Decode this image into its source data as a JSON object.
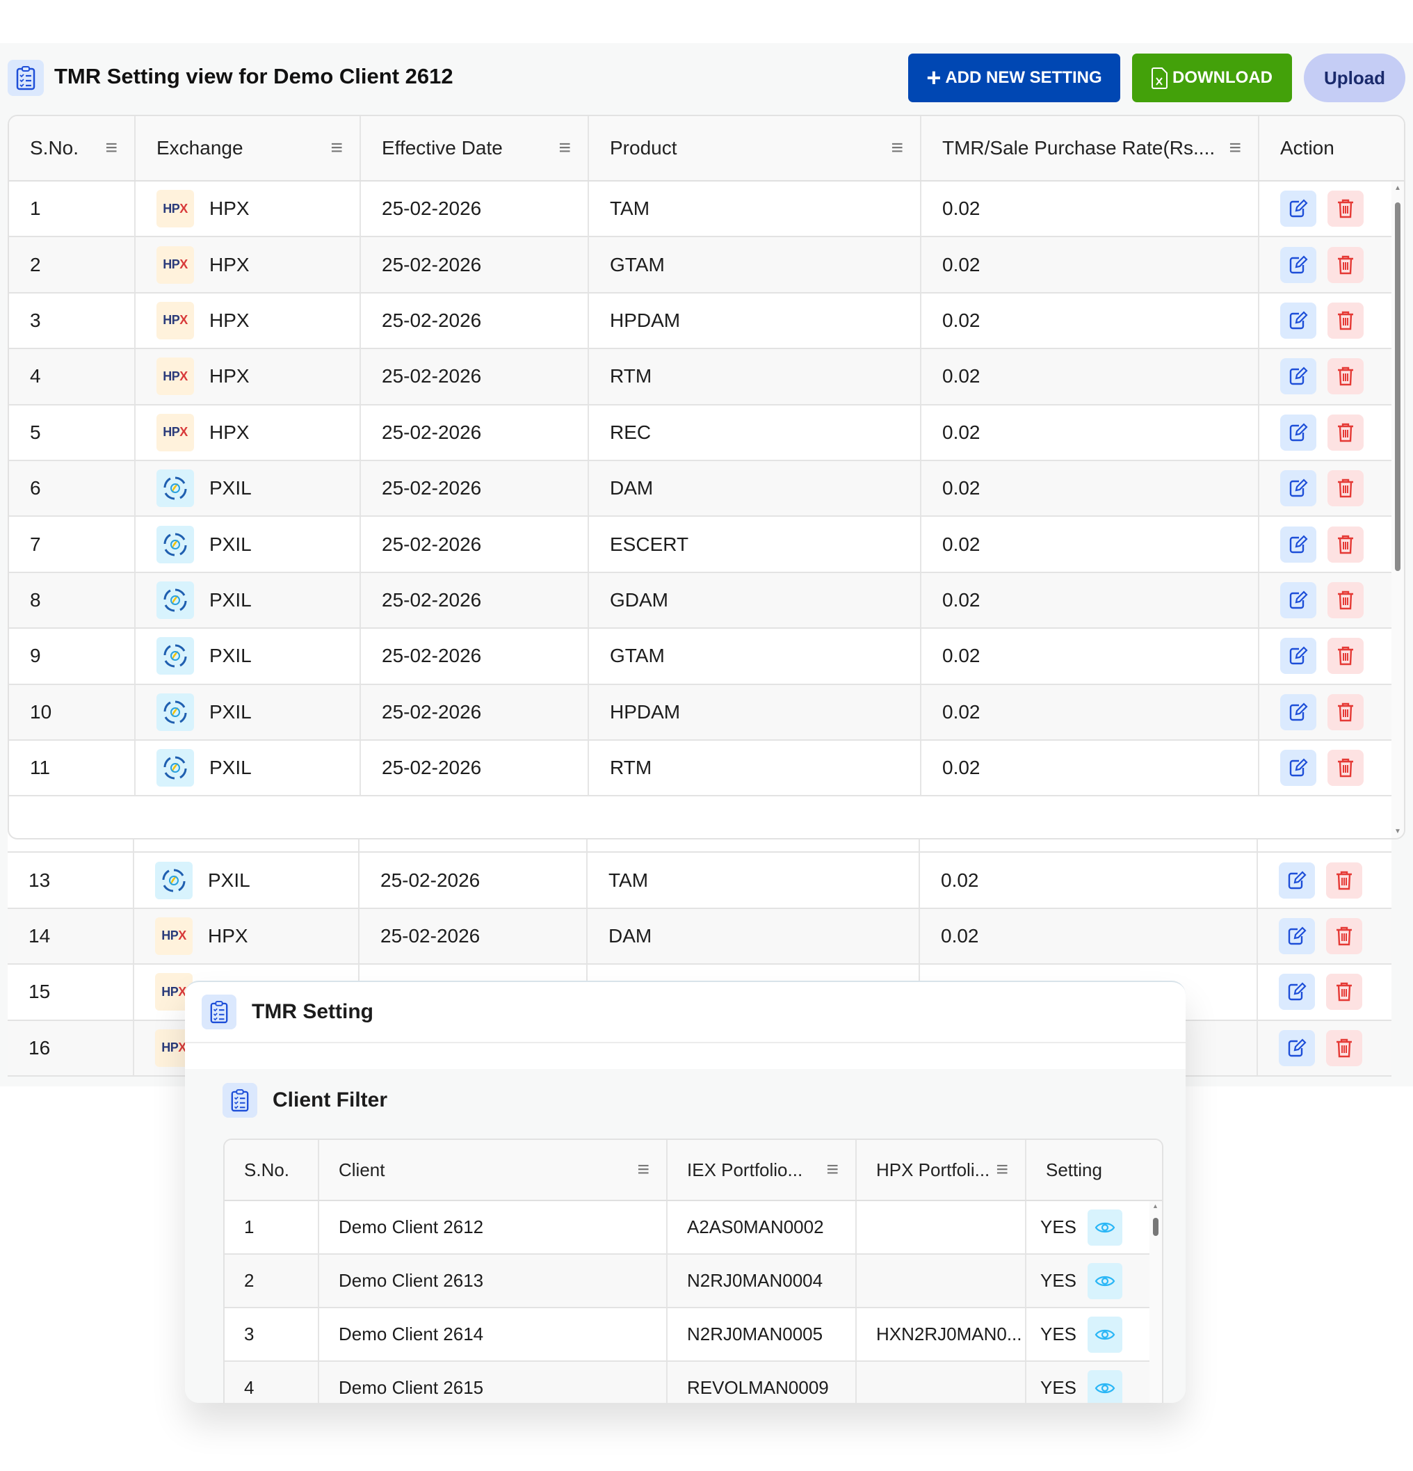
{
  "header": {
    "title": "TMR Setting view for Demo Client 2612",
    "add_label": "ADD NEW SETTING",
    "download_label": "DOWNLOAD",
    "upload_label": "Upload"
  },
  "colors": {
    "add": "#0047b3",
    "download": "#43a10a",
    "upload": "#c5cdf5",
    "edit": "#1d4ed8",
    "delete": "#e53935",
    "eye": "#29b6f6"
  },
  "table": {
    "columns": [
      "S.No.",
      "Exchange",
      "Effective Date",
      "Product",
      "TMR/Sale Purchase Rate(Rs....",
      "Action"
    ],
    "rows": [
      {
        "sno": "1",
        "exchange": "HPX",
        "date": "25-02-2026",
        "product": "TAM",
        "rate": "0.02"
      },
      {
        "sno": "2",
        "exchange": "HPX",
        "date": "25-02-2026",
        "product": "GTAM",
        "rate": "0.02"
      },
      {
        "sno": "3",
        "exchange": "HPX",
        "date": "25-02-2026",
        "product": "HPDAM",
        "rate": "0.02"
      },
      {
        "sno": "4",
        "exchange": "HPX",
        "date": "25-02-2026",
        "product": "RTM",
        "rate": "0.02"
      },
      {
        "sno": "5",
        "exchange": "HPX",
        "date": "25-02-2026",
        "product": "REC",
        "rate": "0.02"
      },
      {
        "sno": "6",
        "exchange": "PXIL",
        "date": "25-02-2026",
        "product": "DAM",
        "rate": "0.02"
      },
      {
        "sno": "7",
        "exchange": "PXIL",
        "date": "25-02-2026",
        "product": "ESCERT",
        "rate": "0.02"
      },
      {
        "sno": "8",
        "exchange": "PXIL",
        "date": "25-02-2026",
        "product": "GDAM",
        "rate": "0.02"
      },
      {
        "sno": "9",
        "exchange": "PXIL",
        "date": "25-02-2026",
        "product": "GTAM",
        "rate": "0.02"
      },
      {
        "sno": "10",
        "exchange": "PXIL",
        "date": "25-02-2026",
        "product": "HPDAM",
        "rate": "0.02"
      },
      {
        "sno": "11",
        "exchange": "PXIL",
        "date": "25-02-2026",
        "product": "RTM",
        "rate": "0.02"
      }
    ],
    "rows_behind": [
      {
        "sno": "13",
        "exchange": "PXIL",
        "date": "25-02-2026",
        "product": "TAM",
        "rate": "0.02"
      },
      {
        "sno": "14",
        "exchange": "HPX",
        "date": "25-02-2026",
        "product": "DAM",
        "rate": "0.02"
      },
      {
        "sno": "15",
        "exchange_logo": "HPX"
      },
      {
        "sno": "16",
        "exchange_logo": "HPX"
      }
    ]
  },
  "popup": {
    "title": "TMR Setting",
    "section_title": "Client Filter",
    "columns": [
      "S.No.",
      "Client",
      "IEX Portfolio...",
      "HPX Portfoli...",
      "Setting"
    ],
    "rows": [
      {
        "sno": "1",
        "client": "Demo Client 2612",
        "iex": "A2AS0MAN0002",
        "hpx": "",
        "setting": "YES"
      },
      {
        "sno": "2",
        "client": "Demo Client 2613",
        "iex": "N2RJ0MAN0004",
        "hpx": "",
        "setting": "YES"
      },
      {
        "sno": "3",
        "client": "Demo Client 2614",
        "iex": "N2RJ0MAN0005",
        "hpx": "HXN2RJ0MAN0...",
        "setting": "YES"
      },
      {
        "sno": "4",
        "client": "Demo Client 2615",
        "iex": "REVOLMAN0009",
        "hpx": "",
        "setting": "YES"
      }
    ]
  }
}
